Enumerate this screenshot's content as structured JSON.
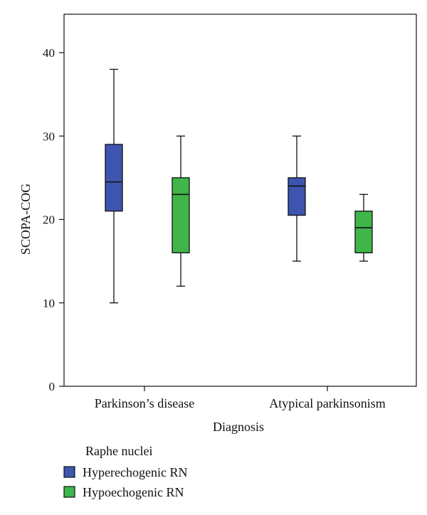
{
  "chart_data": {
    "type": "boxplot",
    "xlabel": "Diagnosis",
    "ylabel": "SCOPA-COG",
    "ylim": [
      0,
      45
    ],
    "yticks": [
      0,
      10,
      20,
      30,
      40
    ],
    "grid": false,
    "categories": [
      "Parkinson’s disease",
      "Atypical parkinsonism"
    ],
    "legend": {
      "title": "Raphe nuclei",
      "placement": "bottom-left"
    },
    "series": [
      {
        "name": "Hyperechogenic RN",
        "color": "#3e55b0",
        "boxes": [
          {
            "min": 10,
            "q1": 21,
            "median": 24.5,
            "q3": 29,
            "max": 38
          },
          {
            "min": 15,
            "q1": 20.5,
            "median": 24,
            "q3": 25,
            "max": 30
          }
        ]
      },
      {
        "name": "Hypoechogenic RN",
        "color": "#3fb54a",
        "boxes": [
          {
            "min": 12,
            "q1": 16,
            "median": 23,
            "q3": 25,
            "max": 30
          },
          {
            "min": 15,
            "q1": 16,
            "median": 19,
            "q3": 21,
            "max": 23
          }
        ]
      }
    ]
  }
}
